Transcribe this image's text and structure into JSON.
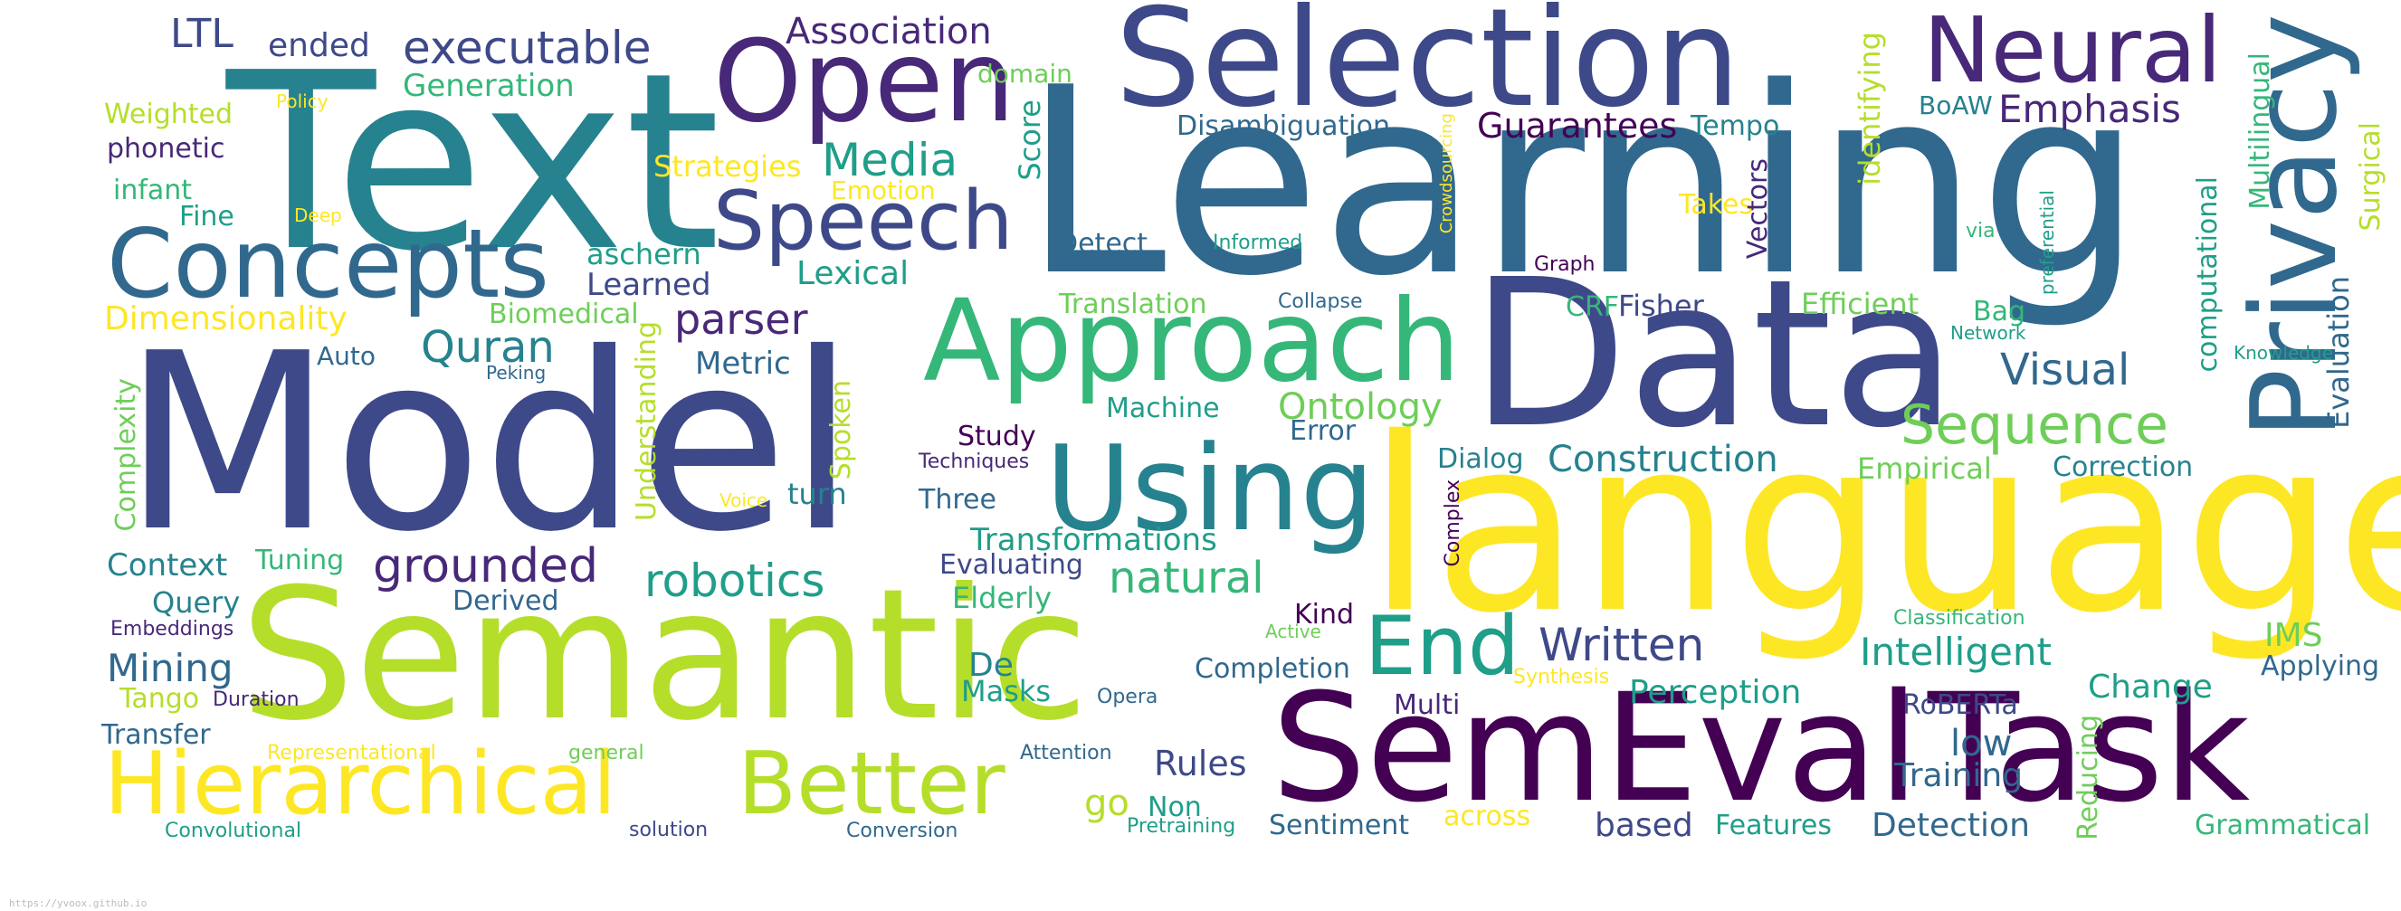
{
  "palette": {
    "c1": "#440154",
    "c2": "#482878",
    "c3": "#3e4989",
    "c4": "#31688e",
    "c5": "#26828e",
    "c6": "#1f9e89",
    "c7": "#35b779",
    "c8": "#6ece58",
    "c9": "#b5de2b",
    "c10": "#fde725"
  },
  "words": [
    {
      "text": "Text",
      "color": "c5"
    },
    {
      "text": "Selection",
      "color": "c3"
    },
    {
      "text": "Open",
      "color": "c2"
    },
    {
      "text": "Neural",
      "color": "c2"
    },
    {
      "text": "Privacy",
      "color": "c4"
    },
    {
      "text": "Learning",
      "color": "c4"
    },
    {
      "text": "Concepts",
      "color": "c4"
    },
    {
      "text": "Speech",
      "color": "c3"
    },
    {
      "text": "Approach",
      "color": "c7"
    },
    {
      "text": "Data",
      "color": "c3"
    },
    {
      "text": "Model",
      "color": "c3"
    },
    {
      "text": "Using",
      "color": "c5"
    },
    {
      "text": "language",
      "color": "c10"
    },
    {
      "text": "Semantic",
      "color": "c9"
    },
    {
      "text": "SemEval",
      "color": "c1"
    },
    {
      "text": "Task",
      "color": "c1"
    },
    {
      "text": "Hierarchical",
      "color": "c10"
    },
    {
      "text": "Better",
      "color": "c9"
    },
    {
      "text": "End",
      "color": "c6"
    },
    {
      "text": "Sequence",
      "color": "c8"
    },
    {
      "text": "Written",
      "color": "c3"
    },
    {
      "text": "Intelligent",
      "color": "c6"
    },
    {
      "text": "LTL",
      "color": "c3"
    },
    {
      "text": "ended",
      "color": "c3"
    },
    {
      "text": "executable",
      "color": "c3"
    },
    {
      "text": "Association",
      "color": "c2"
    },
    {
      "text": "Generation",
      "color": "c7"
    },
    {
      "text": "domain",
      "color": "c8"
    },
    {
      "text": "Weighted",
      "color": "c9"
    },
    {
      "text": "Policy",
      "color": "c10"
    },
    {
      "text": "phonetic",
      "color": "c2"
    },
    {
      "text": "infant",
      "color": "c7"
    },
    {
      "text": "Fine",
      "color": "c6"
    },
    {
      "text": "Deep",
      "color": "c10"
    },
    {
      "text": "Strategies",
      "color": "c10"
    },
    {
      "text": "Media",
      "color": "c6"
    },
    {
      "text": "Emotion",
      "color": "c10"
    },
    {
      "text": "Score",
      "color": "c6"
    },
    {
      "text": "Disambiguation",
      "color": "c4"
    },
    {
      "text": "Guarantees",
      "color": "c1"
    },
    {
      "text": "Tempo",
      "color": "c5"
    },
    {
      "text": "BoAW",
      "color": "c5"
    },
    {
      "text": "Emphasis",
      "color": "c2"
    },
    {
      "text": "identifying",
      "color": "c9"
    },
    {
      "text": "Multilingual",
      "color": "c7"
    },
    {
      "text": "Surgical",
      "color": "c9"
    },
    {
      "text": "Crowdsourcing",
      "color": "c10"
    },
    {
      "text": "Takes",
      "color": "c10"
    },
    {
      "text": "Vectors",
      "color": "c2"
    },
    {
      "text": "computational",
      "color": "c6"
    },
    {
      "text": "preferential",
      "color": "c6"
    },
    {
      "text": "via",
      "color": "c7"
    },
    {
      "text": "Evaluation",
      "color": "c4"
    },
    {
      "text": "Informed",
      "color": "c6"
    },
    {
      "text": "Detect",
      "color": "c4"
    },
    {
      "text": "Graph",
      "color": "c1"
    },
    {
      "text": "aschern",
      "color": "c6"
    },
    {
      "text": "Learned",
      "color": "c3"
    },
    {
      "text": "Lexical",
      "color": "c6"
    },
    {
      "text": "Dimensionality",
      "color": "c10"
    },
    {
      "text": "Biomedical",
      "color": "c8"
    },
    {
      "text": "parser",
      "color": "c2"
    },
    {
      "text": "Translation",
      "color": "c8"
    },
    {
      "text": "Collapse",
      "color": "c4"
    },
    {
      "text": "CRF",
      "color": "c7"
    },
    {
      "text": "Fisher",
      "color": "c3"
    },
    {
      "text": "Efficient",
      "color": "c8"
    },
    {
      "text": "Bag",
      "color": "c7"
    },
    {
      "text": "Network",
      "color": "c6"
    },
    {
      "text": "Knowledge",
      "color": "c6"
    },
    {
      "text": "Auto",
      "color": "c4"
    },
    {
      "text": "Quran",
      "color": "c5"
    },
    {
      "text": "Metric",
      "color": "c4"
    },
    {
      "text": "Peking",
      "color": "c4"
    },
    {
      "text": "Understanding",
      "color": "c9"
    },
    {
      "text": "Visual",
      "color": "c4"
    },
    {
      "text": "Machine",
      "color": "c6"
    },
    {
      "text": "Ontology",
      "color": "c8"
    },
    {
      "text": "Complexity",
      "color": "c8"
    },
    {
      "text": "Spoken",
      "color": "c9"
    },
    {
      "text": "Study",
      "color": "c1"
    },
    {
      "text": "Error",
      "color": "c4"
    },
    {
      "text": "Techniques",
      "color": "c2"
    },
    {
      "text": "Dialog",
      "color": "c5"
    },
    {
      "text": "Construction",
      "color": "c5"
    },
    {
      "text": "Empirical",
      "color": "c8"
    },
    {
      "text": "Correction",
      "color": "c5"
    },
    {
      "text": "Voice",
      "color": "c10"
    },
    {
      "text": "turn",
      "color": "c5"
    },
    {
      "text": "Three",
      "color": "c4"
    },
    {
      "text": "Complex",
      "color": "c1"
    },
    {
      "text": "Context",
      "color": "c5"
    },
    {
      "text": "Tuning",
      "color": "c7"
    },
    {
      "text": "grounded",
      "color": "c2"
    },
    {
      "text": "Transformations",
      "color": "c6"
    },
    {
      "text": "robotics",
      "color": "c6"
    },
    {
      "text": "natural",
      "color": "c7"
    },
    {
      "text": "Query",
      "color": "c5"
    },
    {
      "text": "Derived",
      "color": "c4"
    },
    {
      "text": "Evaluating",
      "color": "c3"
    },
    {
      "text": "Elderly",
      "color": "c7"
    },
    {
      "text": "Embeddings",
      "color": "c2"
    },
    {
      "text": "Kind",
      "color": "c1"
    },
    {
      "text": "Active",
      "color": "c8"
    },
    {
      "text": "Classification",
      "color": "c7"
    },
    {
      "text": "IMS",
      "color": "c8"
    },
    {
      "text": "Mining",
      "color": "c4"
    },
    {
      "text": "De",
      "color": "c5"
    },
    {
      "text": "Completion",
      "color": "c4"
    },
    {
      "text": "Applying",
      "color": "c4"
    },
    {
      "text": "Tango",
      "color": "c9"
    },
    {
      "text": "Duration",
      "color": "c2"
    },
    {
      "text": "Masks",
      "color": "c6"
    },
    {
      "text": "Opera",
      "color": "c4"
    },
    {
      "text": "Multi",
      "color": "c2"
    },
    {
      "text": "Synthesis",
      "color": "c10"
    },
    {
      "text": "Perception",
      "color": "c6"
    },
    {
      "text": "RoBERTa",
      "color": "c3"
    },
    {
      "text": "Change",
      "color": "c6"
    },
    {
      "text": "Transfer",
      "color": "c4"
    },
    {
      "text": "Representational",
      "color": "c10"
    },
    {
      "text": "general",
      "color": "c8"
    },
    {
      "text": "Attention",
      "color": "c4"
    },
    {
      "text": "Rules",
      "color": "c3"
    },
    {
      "text": "low",
      "color": "c4"
    },
    {
      "text": "Training",
      "color": "c4"
    },
    {
      "text": "Reducing",
      "color": "c8"
    },
    {
      "text": "go",
      "color": "c9"
    },
    {
      "text": "Non",
      "color": "c6"
    },
    {
      "text": "Convolutional",
      "color": "c6"
    },
    {
      "text": "solution",
      "color": "c3"
    },
    {
      "text": "Conversion",
      "color": "c4"
    },
    {
      "text": "Pretraining",
      "color": "c6"
    },
    {
      "text": "Sentiment",
      "color": "c4"
    },
    {
      "text": "across",
      "color": "c10"
    },
    {
      "text": "based",
      "color": "c3"
    },
    {
      "text": "Features",
      "color": "c6"
    },
    {
      "text": "Detection",
      "color": "c4"
    },
    {
      "text": "Grammatical",
      "color": "c7"
    }
  ],
  "footer": {
    "url": "https://yvoox.github.io"
  }
}
